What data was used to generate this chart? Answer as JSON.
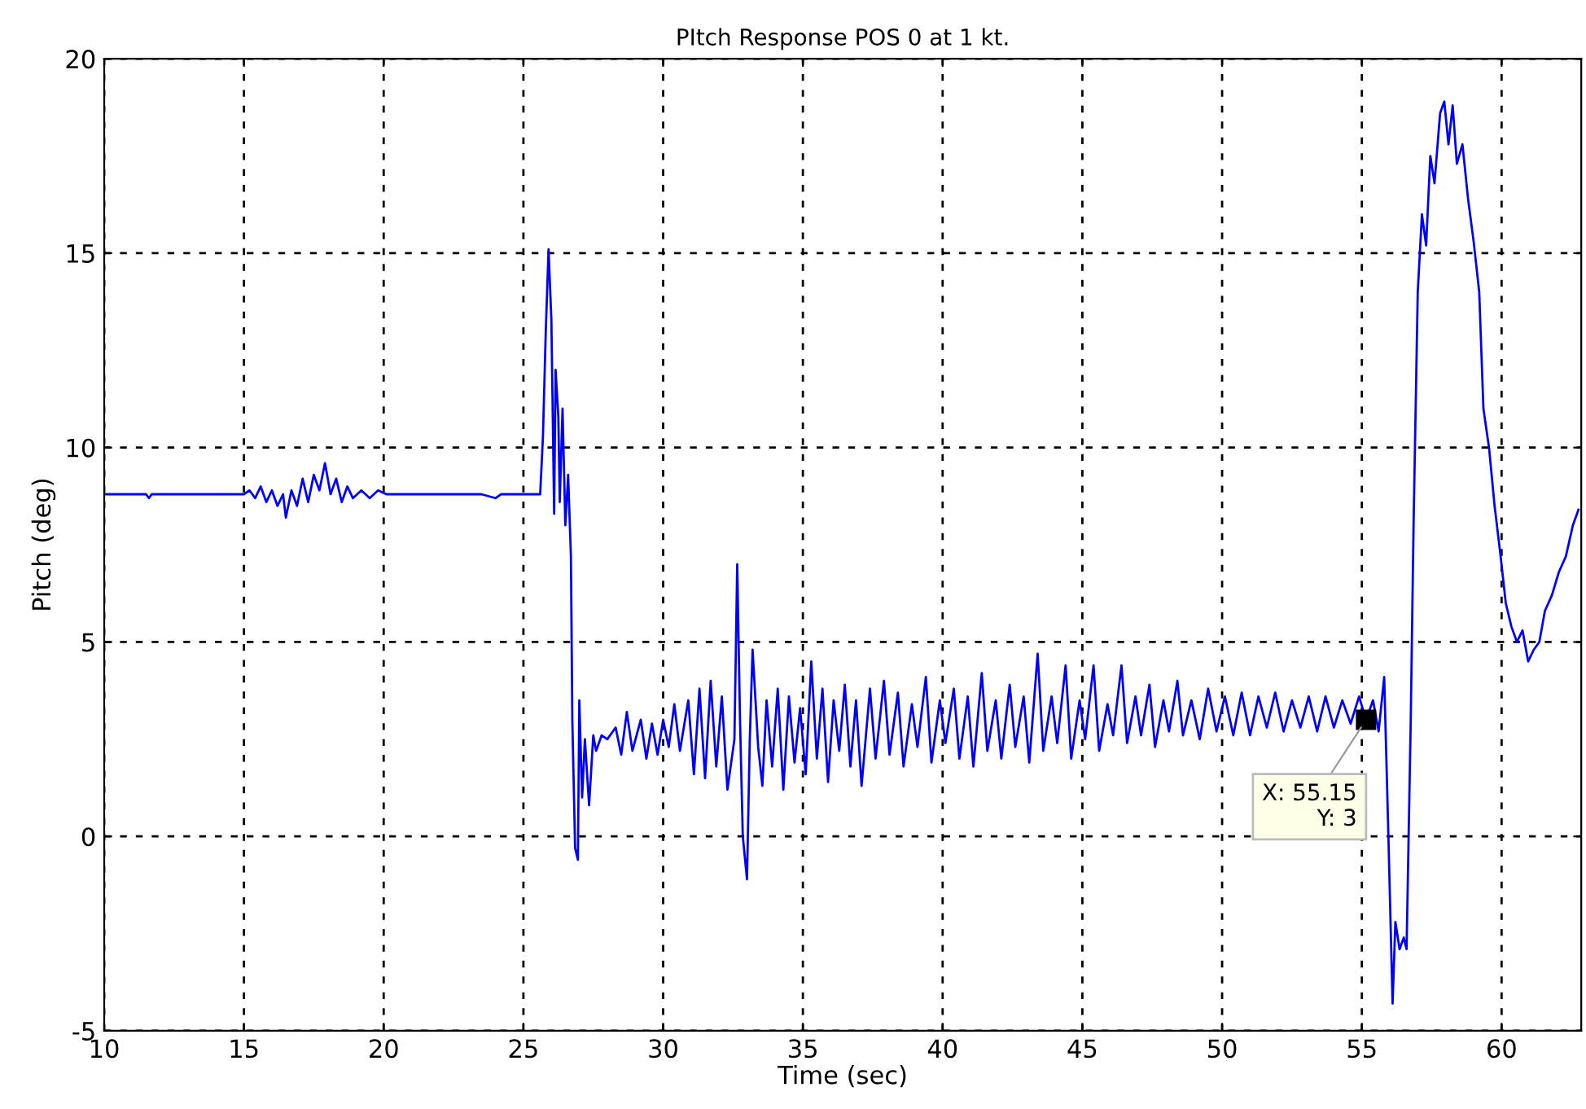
{
  "chart_data": {
    "type": "line",
    "title": "PItch Response POS 0 at 1 kt.",
    "xlabel": "Time (sec)",
    "ylabel": "Pitch (deg)",
    "annotations": [
      {
        "text": "X: 55.15\nY: 3",
        "x": 55.15,
        "y": 3
      }
    ],
    "xlim": [
      10,
      62.85
    ],
    "ylim": [
      -5,
      20
    ],
    "xticks": [
      10,
      15,
      20,
      25,
      30,
      35,
      40,
      45,
      50,
      55,
      60
    ],
    "yticks": [
      -5,
      0,
      5,
      10,
      15,
      20
    ],
    "grid": true,
    "line_style": "solid",
    "marker": "none",
    "series": [
      {
        "color": "#0000ff",
        "x": [
          10,
          11.5,
          11.6,
          11.7,
          15,
          15.2,
          15.4,
          15.6,
          15.8,
          16.0,
          16.2,
          16.4,
          16.5,
          16.7,
          16.9,
          17.1,
          17.3,
          17.5,
          17.7,
          17.9,
          18.1,
          18.3,
          18.5,
          18.7,
          18.9,
          19.2,
          19.5,
          19.8,
          20.1,
          21,
          22,
          23.5,
          24,
          24.2,
          25.6,
          25.7,
          25.8,
          25.9,
          26.0,
          26.1,
          26.15,
          26.25,
          26.3,
          26.4,
          26.5,
          26.6,
          26.7,
          26.75,
          26.85,
          26.95,
          27.0,
          27.1,
          27.2,
          27.35,
          27.5,
          27.6,
          27.8,
          28.0,
          28.3,
          28.5,
          28.7,
          28.9,
          29.2,
          29.4,
          29.6,
          29.8,
          30.0,
          30.2,
          30.4,
          30.6,
          30.9,
          31.1,
          31.3,
          31.5,
          31.7,
          31.9,
          32.1,
          32.3,
          32.55,
          32.65,
          32.75,
          32.85,
          33.0,
          33.1,
          33.2,
          33.4,
          33.55,
          33.7,
          33.9,
          34.1,
          34.3,
          34.5,
          34.7,
          34.9,
          35.1,
          35.3,
          35.5,
          35.7,
          35.9,
          36.1,
          36.3,
          36.5,
          36.7,
          36.9,
          37.1,
          37.4,
          37.6,
          37.9,
          38.1,
          38.4,
          38.6,
          38.9,
          39.1,
          39.4,
          39.6,
          39.9,
          40.1,
          40.4,
          40.6,
          40.9,
          41.1,
          41.4,
          41.6,
          41.9,
          42.1,
          42.4,
          42.6,
          42.9,
          43.1,
          43.4,
          43.6,
          43.9,
          44.1,
          44.4,
          44.6,
          44.9,
          45.1,
          45.4,
          45.6,
          45.9,
          46.1,
          46.4,
          46.6,
          46.9,
          47.1,
          47.4,
          47.6,
          47.9,
          48.1,
          48.4,
          48.6,
          48.9,
          49.2,
          49.5,
          49.8,
          50.1,
          50.4,
          50.7,
          51.0,
          51.3,
          51.6,
          51.9,
          52.2,
          52.5,
          52.8,
          53.1,
          53.4,
          53.7,
          54.0,
          54.3,
          54.6,
          54.9,
          55.15,
          55.4,
          55.6,
          55.8,
          55.95,
          56.1,
          56.2,
          56.35,
          56.5,
          56.6,
          56.75,
          56.85,
          57.0,
          57.15,
          57.3,
          57.45,
          57.6,
          57.8,
          57.95,
          58.1,
          58.25,
          58.4,
          58.6,
          58.8,
          59.0,
          59.2,
          59.35,
          59.55,
          59.75,
          59.95,
          60.15,
          60.35,
          60.55,
          60.75,
          60.95,
          61.15,
          61.35,
          61.55,
          61.8,
          62.05,
          62.3,
          62.55,
          62.75
        ],
        "values": [
          8.8,
          8.8,
          8.7,
          8.8,
          8.8,
          8.9,
          8.7,
          9.0,
          8.6,
          8.9,
          8.5,
          8.8,
          8.2,
          8.9,
          8.5,
          9.2,
          8.6,
          9.3,
          8.9,
          9.6,
          8.8,
          9.2,
          8.6,
          9.0,
          8.7,
          8.9,
          8.7,
          8.9,
          8.8,
          8.8,
          8.8,
          8.8,
          8.7,
          8.8,
          8.8,
          10.3,
          13.0,
          15.1,
          13.3,
          8.3,
          12.0,
          10.8,
          8.6,
          11.0,
          8.0,
          9.3,
          7.2,
          3.0,
          -0.3,
          -0.6,
          3.5,
          1.0,
          2.5,
          0.8,
          2.6,
          2.2,
          2.6,
          2.5,
          2.8,
          2.1,
          3.2,
          2.2,
          3.0,
          2.0,
          2.9,
          2.1,
          3.0,
          2.3,
          3.4,
          2.2,
          3.5,
          1.6,
          3.8,
          1.5,
          4.0,
          1.8,
          3.6,
          1.2,
          2.5,
          7.0,
          3.0,
          0.0,
          -1.1,
          2.5,
          4.8,
          2.3,
          1.3,
          3.5,
          1.8,
          3.8,
          1.2,
          3.6,
          1.9,
          3.3,
          1.6,
          4.5,
          2.0,
          3.8,
          1.4,
          3.5,
          2.2,
          3.9,
          1.8,
          3.5,
          1.3,
          3.8,
          2.0,
          4.0,
          2.1,
          3.7,
          1.8,
          3.4,
          2.3,
          4.1,
          1.9,
          3.5,
          2.4,
          3.8,
          2.0,
          3.6,
          1.8,
          4.2,
          2.2,
          3.5,
          2.0,
          3.9,
          2.3,
          3.6,
          1.9,
          4.7,
          2.2,
          3.6,
          2.4,
          4.4,
          2.0,
          3.5,
          2.5,
          4.4,
          2.2,
          3.4,
          2.6,
          4.4,
          2.4,
          3.6,
          2.6,
          3.9,
          2.3,
          3.5,
          2.7,
          4.0,
          2.6,
          3.5,
          2.5,
          3.8,
          2.7,
          3.6,
          2.6,
          3.7,
          2.6,
          3.6,
          2.8,
          3.7,
          2.7,
          3.5,
          2.8,
          3.6,
          2.7,
          3.6,
          2.8,
          3.5,
          2.9,
          3.6,
          3.0,
          3.5,
          2.7,
          4.1,
          0.0,
          -4.3,
          -2.2,
          -2.9,
          -2.6,
          -2.9,
          3.0,
          8.0,
          14.0,
          16.0,
          15.2,
          17.5,
          16.8,
          18.6,
          18.9,
          17.8,
          18.8,
          17.3,
          17.8,
          16.4,
          15.3,
          14.0,
          11.0,
          10.0,
          8.5,
          7.3,
          6.0,
          5.4,
          5.0,
          5.3,
          4.5,
          4.8,
          5.0,
          5.8,
          6.2,
          6.8,
          7.2,
          8.0,
          8.4
        ]
      }
    ]
  }
}
